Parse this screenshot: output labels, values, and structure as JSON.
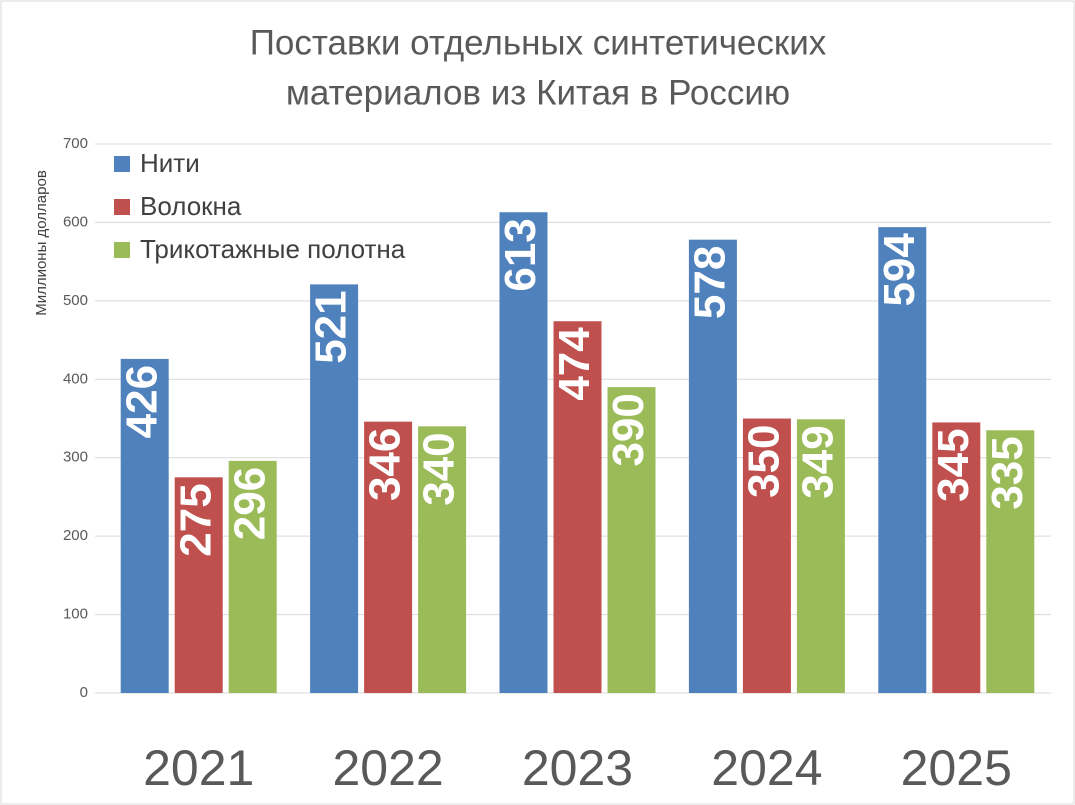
{
  "chart_data": {
    "type": "bar",
    "title": [
      "Поставки отдельных синтетических",
      "материалов из Китая в Россию"
    ],
    "y_label": "Миллионы долларов",
    "categories": [
      "2021",
      "2022",
      "2023",
      "2024",
      "2025"
    ],
    "series": [
      {
        "name": "Нити",
        "color": "#4f81bd",
        "values": [
          426,
          521,
          613,
          578,
          594
        ]
      },
      {
        "name": "Волокна",
        "color": "#c0504d",
        "values": [
          275,
          346,
          474,
          350,
          345
        ]
      },
      {
        "name": "Трикотажные полотна",
        "color": "#9bbb59",
        "values": [
          296,
          340,
          390,
          349,
          335
        ]
      }
    ],
    "ylim": [
      0,
      700
    ],
    "yticks": [
      0,
      100,
      200,
      300,
      400,
      500,
      600,
      700
    ],
    "grid": true,
    "legend": "top-left"
  }
}
